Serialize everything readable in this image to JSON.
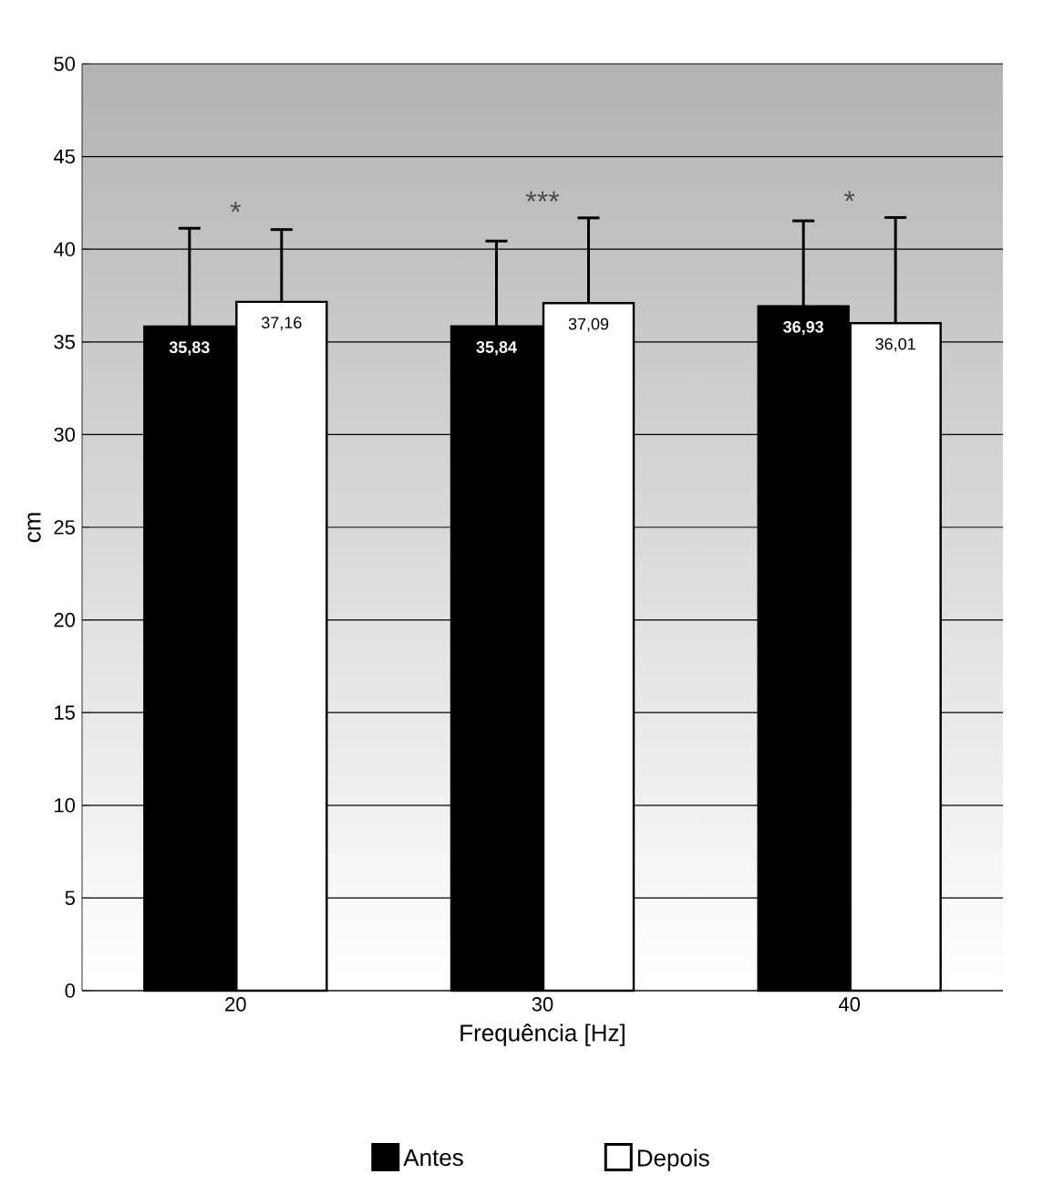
{
  "chart_data": {
    "type": "bar",
    "xlabel": "Frequência [Hz]",
    "ylabel": "cm",
    "categories": [
      "20",
      "30",
      "40"
    ],
    "series": [
      {
        "name": "Antes",
        "color": "#000000",
        "values": [
          35.83,
          35.84,
          36.93
        ],
        "errors": [
          5.3,
          4.6,
          4.6
        ],
        "value_labels": [
          "35,83",
          "35,84",
          "36,93"
        ]
      },
      {
        "name": "Depois",
        "color": "#ffffff",
        "values": [
          37.16,
          37.09,
          36.01
        ],
        "errors": [
          3.9,
          4.6,
          5.7
        ],
        "value_labels": [
          "37,16",
          "37,09",
          "36,01"
        ]
      }
    ],
    "ylim": [
      0,
      50
    ],
    "yticks": [
      0,
      5,
      10,
      15,
      20,
      25,
      30,
      35,
      40,
      45,
      50
    ],
    "grid": "y",
    "legend": "bottom",
    "annotations": [
      "*",
      "***",
      "*"
    ]
  }
}
